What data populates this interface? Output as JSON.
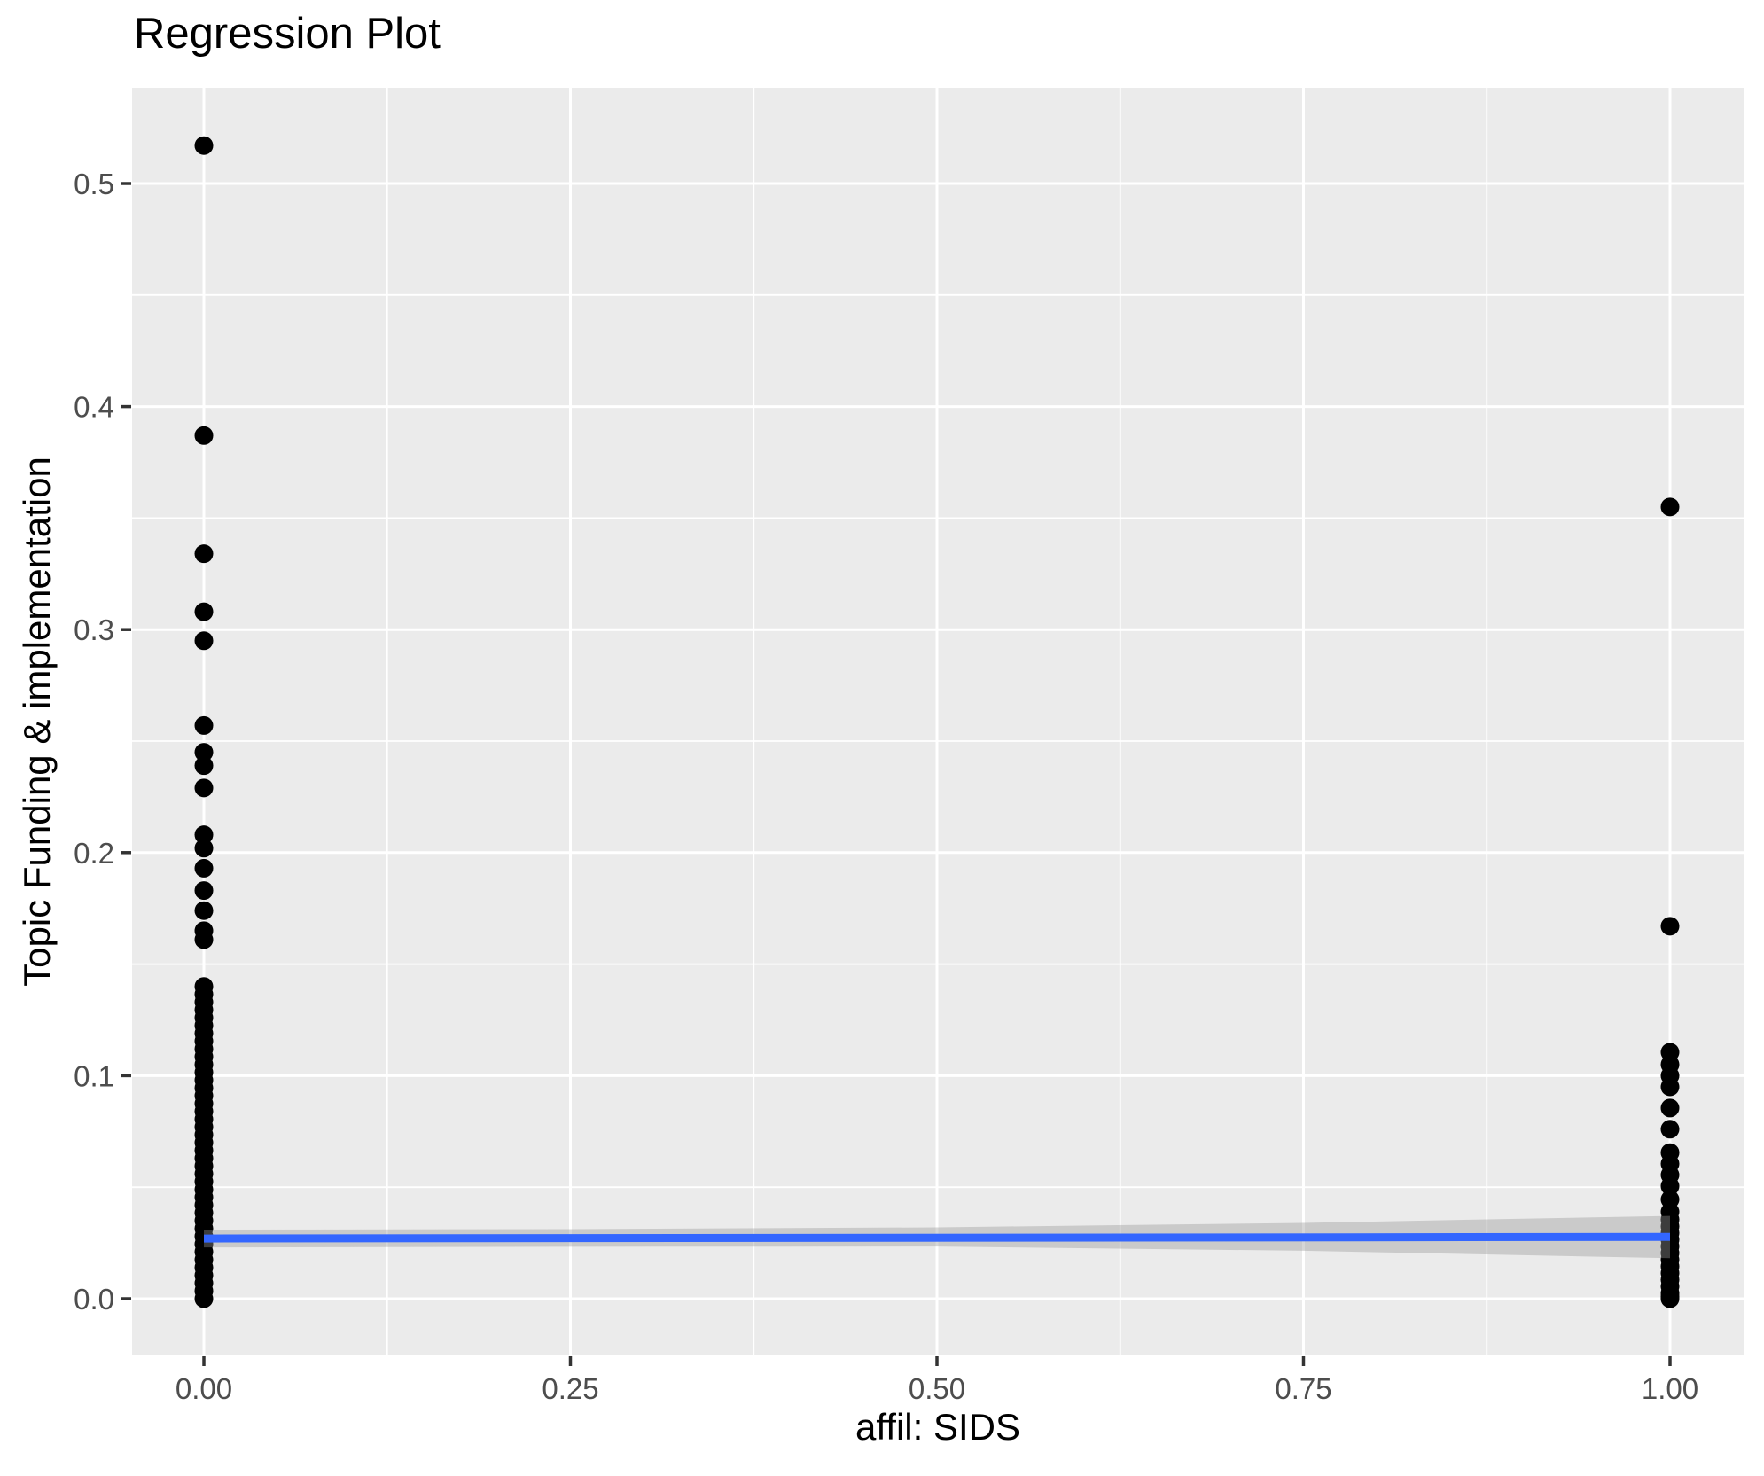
{
  "title": {
    "text": "Regression Plot"
  },
  "chart_data": {
    "type": "scatter",
    "title": "Regression Plot",
    "xlabel": "affil: SIDS",
    "ylabel": "Topic Funding & implementation",
    "xlim": [
      -0.05,
      1.05
    ],
    "ylim": [
      -0.026,
      0.543
    ],
    "grid": "on",
    "legend": "none",
    "x_ticks": [
      0,
      0.25,
      0.5,
      0.75,
      1
    ],
    "x_tick_labels": [
      "0.00",
      "0.25",
      "0.50",
      "0.75",
      "1.00"
    ],
    "y_ticks": [
      0,
      0.1,
      0.2,
      0.3,
      0.4,
      0.5
    ],
    "y_tick_labels": [
      "0.0",
      "0.1",
      "0.2",
      "0.3",
      "0.4",
      "0.5"
    ],
    "x_minor_breaks": [
      0.125,
      0.375,
      0.625,
      0.875
    ],
    "y_minor_breaks": [
      0.05,
      0.15,
      0.25,
      0.35,
      0.45
    ],
    "series": [
      {
        "name": "affil SIDS = 0",
        "x": 0,
        "y_values": [
          0.517,
          0.387,
          0.334,
          0.308,
          0.295,
          0.257,
          0.245,
          0.239,
          0.229,
          0.208,
          0.202,
          0.193,
          0.183,
          0.174,
          0.165,
          0.161,
          0.14,
          0.1365,
          0.133,
          0.1295,
          0.126,
          0.1225,
          0.119,
          0.1155,
          0.112,
          0.1085,
          0.105,
          0.1015,
          0.098,
          0.0945,
          0.091,
          0.0875,
          0.084,
          0.0805,
          0.077,
          0.0735,
          0.07,
          0.0665,
          0.063,
          0.0595,
          0.056,
          0.0525,
          0.049,
          0.0455,
          0.042,
          0.0385,
          0.035,
          0.0315,
          0.028,
          0.0245,
          0.021,
          0.0175,
          0.014,
          0.0105,
          0.007,
          0.0035,
          0
        ]
      },
      {
        "name": "affil SIDS = 1",
        "x": 1,
        "y_values": [
          0.355,
          0.167,
          0.1105,
          0.105,
          0.1,
          0.095,
          0.0855,
          0.076,
          0.0655,
          0.0605,
          0.0555,
          0.0505,
          0.0445,
          0.039,
          0.0355,
          0.0325,
          0.0295,
          0.0265,
          0.0235,
          0.0205,
          0.0175,
          0.0145,
          0.0115,
          0.0085,
          0.0055,
          0.0025,
          0.001,
          0
        ]
      }
    ],
    "regression_line": {
      "x": [
        0,
        1
      ],
      "y": [
        0.027,
        0.0277
      ]
    },
    "confidence_band": {
      "x": [
        0,
        0.25,
        0.5,
        0.75,
        1
      ],
      "lower": [
        0.023,
        0.0233,
        0.0234,
        0.0215,
        0.0182
      ],
      "upper": [
        0.031,
        0.0312,
        0.032,
        0.034,
        0.0371
      ]
    },
    "colors": {
      "page_background": "#FFFFFF",
      "panel_background": "#EBEBEB",
      "grid": "#FFFFFF",
      "points": "#000000",
      "smooth_line": "#3366FF",
      "confidence_band": "#999999",
      "confidence_band_opacity": 0.4,
      "tick_labels": "#4D4D4D",
      "tick_marks": "#333333",
      "titles": "#000000"
    }
  }
}
